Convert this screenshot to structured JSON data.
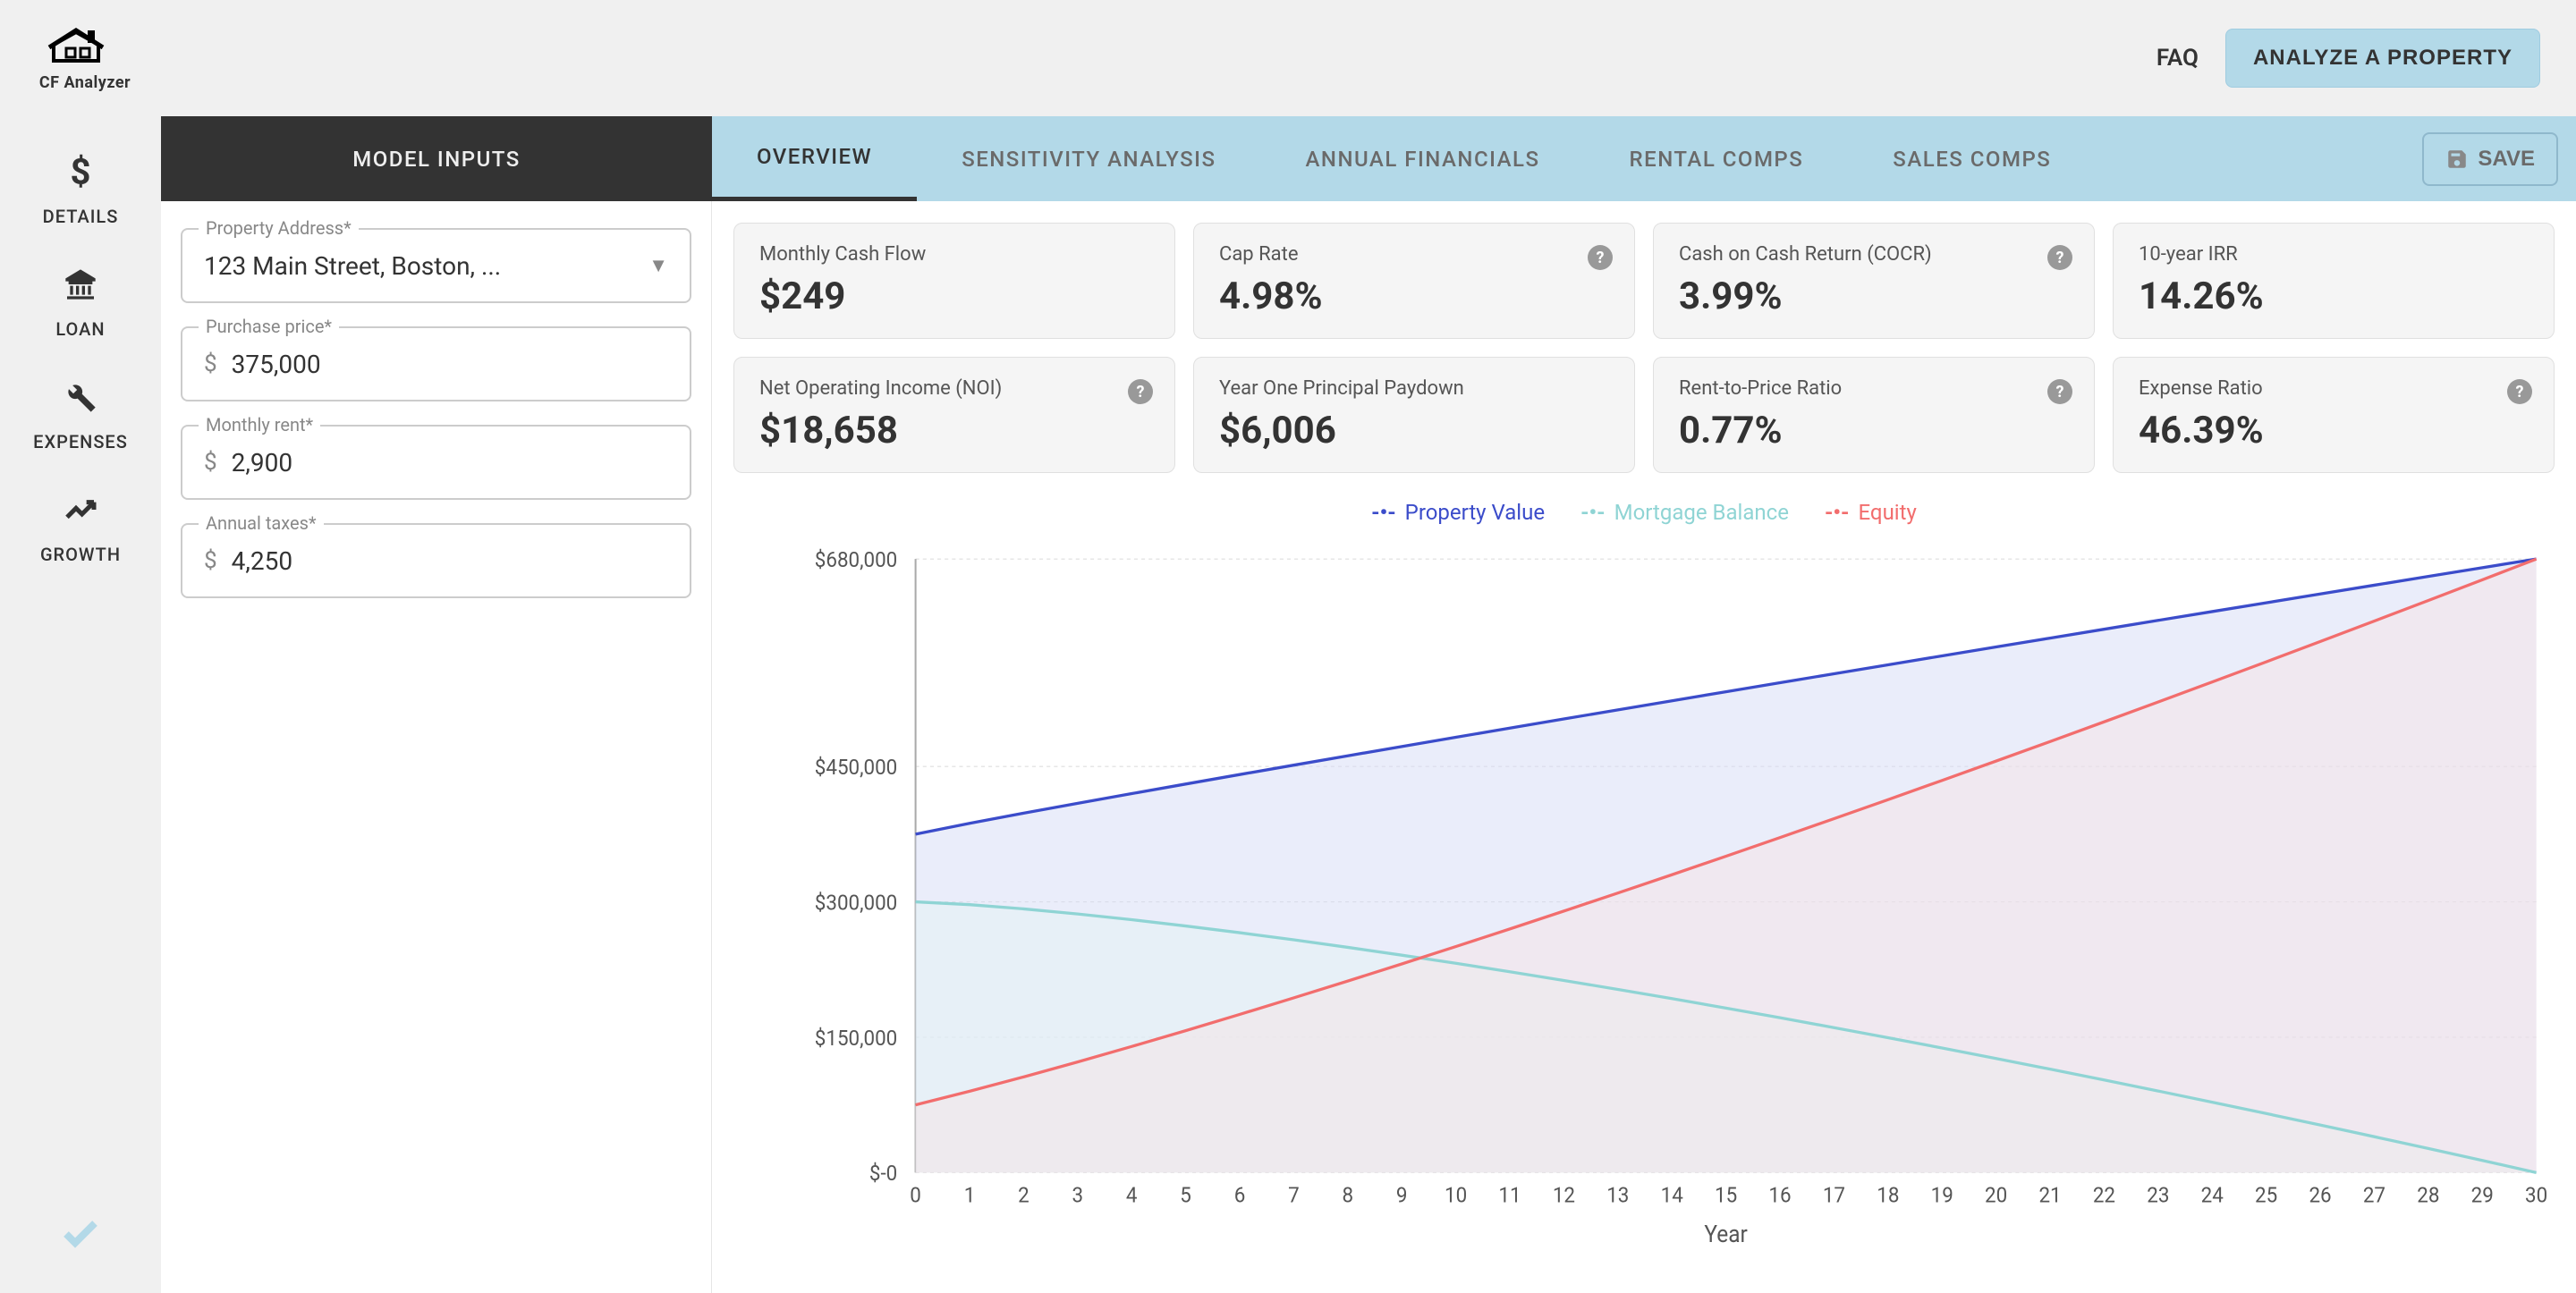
{
  "topbar": {
    "logo_text": "CF Analyzer",
    "faq_label": "FAQ",
    "analyze_label": "ANALYZE A PROPERTY"
  },
  "sidebar": {
    "items": [
      {
        "icon": "$",
        "label": "DETAILS"
      },
      {
        "icon": "bank",
        "label": "LOAN"
      },
      {
        "icon": "wrench",
        "label": "EXPENSES"
      },
      {
        "icon": "growth",
        "label": "GROWTH"
      }
    ]
  },
  "tabs": {
    "model_inputs": "MODEL INPUTS",
    "overview": "OVERVIEW",
    "sensitivity": "SENSITIVITY ANALYSIS",
    "annual": "ANNUAL FINANCIALS",
    "rental": "RENTAL COMPS",
    "sales": "SALES COMPS",
    "save": "SAVE"
  },
  "inputs": {
    "address_label": "Property Address*",
    "address_value": "123 Main Street, Boston, ...",
    "price_label": "Purchase price*",
    "price_value": "375,000",
    "rent_label": "Monthly rent*",
    "rent_value": "2,900",
    "taxes_label": "Annual taxes*",
    "taxes_value": "4,250"
  },
  "metrics": [
    {
      "label": "Monthly Cash Flow",
      "value": "$249",
      "help": false
    },
    {
      "label": "Cap Rate",
      "value": "4.98%",
      "help": true
    },
    {
      "label": "Cash on Cash Return (COCR)",
      "value": "3.99%",
      "help": true
    },
    {
      "label": "10-year IRR",
      "value": "14.26%",
      "help": false
    },
    {
      "label": "Net Operating Income (NOI)",
      "value": "$18,658",
      "help": true
    },
    {
      "label": "Year One Principal Paydown",
      "value": "$6,006",
      "help": false
    },
    {
      "label": "Rent-to-Price Ratio",
      "value": "0.77%",
      "help": true
    },
    {
      "label": "Expense Ratio",
      "value": "46.39%",
      "help": true
    }
  ],
  "chart": {
    "legend": [
      {
        "label": "Property Value",
        "color": "#3b4cca"
      },
      {
        "label": "Mortgage Balance",
        "color": "#8fd4d4"
      },
      {
        "label": "Equity",
        "color": "#f26d6d"
      }
    ],
    "y_ticks": [
      "$680,000",
      "$450,000",
      "$300,000",
      "$150,000",
      "$-0"
    ],
    "y_tick_values": [
      680000,
      450000,
      300000,
      150000,
      0
    ],
    "x_ticks": [
      0,
      1,
      2,
      3,
      4,
      5,
      6,
      7,
      8,
      9,
      10,
      11,
      12,
      13,
      14,
      15,
      16,
      17,
      18,
      19,
      20,
      21,
      22,
      23,
      24,
      25,
      26,
      27,
      28,
      29,
      30
    ],
    "x_label": "Year",
    "ymax": 680000,
    "series": {
      "property_value": {
        "start": 375000,
        "end": 680000,
        "color": "#3b4cca",
        "fill": "#d6dcf5"
      },
      "mortgage_balance": {
        "start": 300000,
        "end": 0,
        "color": "#8fd4d4",
        "fill": "#e4f4f4"
      },
      "equity": {
        "start": 75000,
        "end": 680000,
        "color": "#f26d6d",
        "fill": "#fbe2e2"
      }
    },
    "background_color": "#ffffff",
    "grid_color": "#dddddd"
  }
}
